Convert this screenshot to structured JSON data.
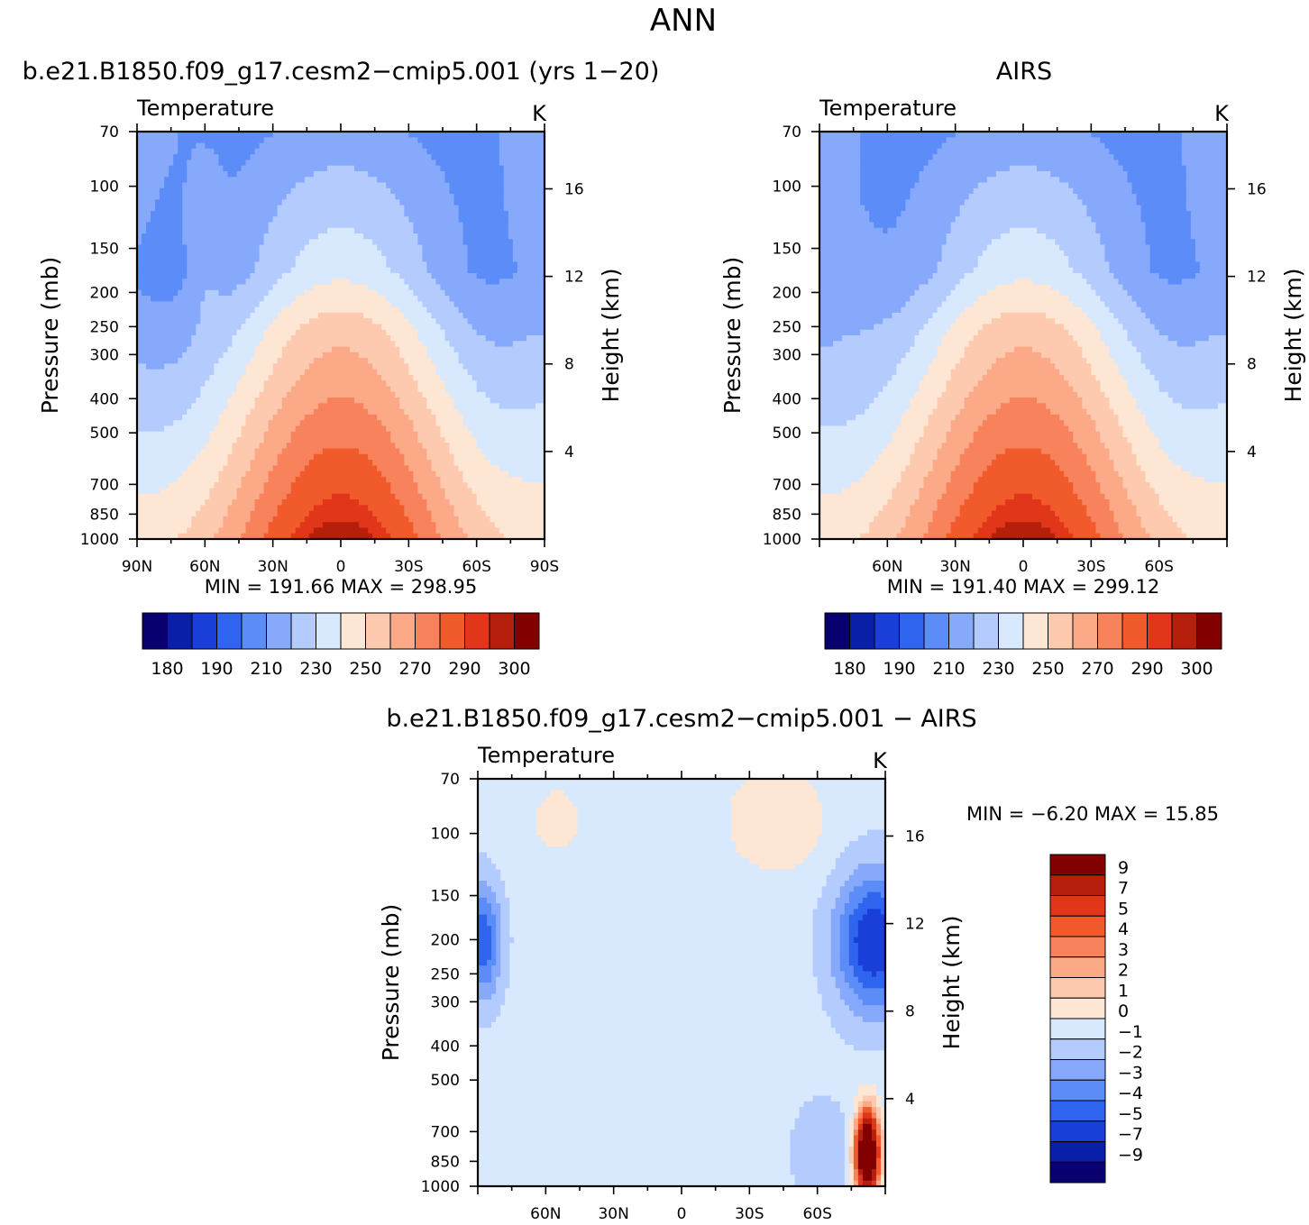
{
  "figure": {
    "title": "ANN",
    "colors": {
      "temp_levels": [
        "#08006e",
        "#0a1fa8",
        "#1a3fd9",
        "#2f64ee",
        "#5b8cf7",
        "#86a9fb",
        "#b4cbfd",
        "#d8e8fd",
        "#fde6d4",
        "#fdcab0",
        "#fba987",
        "#f7825c",
        "#f15a2a",
        "#e2361a",
        "#b51f0b",
        "#820000"
      ],
      "diff_levels": [
        "#08006e",
        "#0a1fa8",
        "#1a3fd9",
        "#2f64ee",
        "#5b8cf7",
        "#86a9fb",
        "#b4cbfd",
        "#d8e8fd",
        "#fde6d4",
        "#fdcab0",
        "#fba987",
        "#f7825c",
        "#f15a2a",
        "#e2361a",
        "#b51f0b",
        "#820000"
      ]
    }
  },
  "chart_data": [
    {
      "id": "model",
      "type": "heatmap",
      "title": "b.e21.B1850.f09_g17.cesm2−cmip5.001  (yrs  1−20)",
      "subtitle_left": "Temperature",
      "units": "K",
      "ylabel": "Pressure  (mb)",
      "y2label": "Height  (km)",
      "xlabel": "",
      "x_ticks": [
        90,
        60,
        30,
        0,
        -30,
        -60,
        -90
      ],
      "x_tick_labels": [
        "90N",
        "60N",
        "30N",
        "0",
        "30S",
        "60S",
        "90S"
      ],
      "y_ticks": [
        70,
        100,
        150,
        200,
        250,
        300,
        400,
        500,
        700,
        850,
        1000
      ],
      "y_tick_labels": [
        "70",
        "100",
        "150",
        "200",
        "250",
        "300",
        "400",
        "500",
        "700",
        "850",
        "1000"
      ],
      "height_ticks": [
        4,
        8,
        12,
        16
      ],
      "height_tick_labels": [
        "4",
        "8",
        "12",
        "16"
      ],
      "xlim": [
        90,
        -90
      ],
      "ylim": [
        1000,
        70
      ],
      "min_max": "MIN  =   191.66    MAX  =   298.95",
      "min": 191.66,
      "max": 298.95,
      "colorbar": {
        "levels": [
          175,
          180,
          185,
          190,
          200,
          210,
          220,
          230,
          240,
          250,
          260,
          270,
          280,
          290,
          295,
          300
        ],
        "labels": [
          "180",
          "190",
          "210",
          "230",
          "250",
          "270",
          "290",
          "300"
        ]
      }
    },
    {
      "id": "obs",
      "type": "heatmap",
      "title": "AIRS",
      "subtitle_left": "Temperature",
      "units": "K",
      "ylabel": "Pressure  (mb)",
      "y2label": "Height  (km)",
      "xlabel": "",
      "x_ticks": [
        60,
        30,
        0,
        -30,
        -60
      ],
      "x_tick_labels": [
        "60N",
        "30N",
        "0",
        "30S",
        "60S"
      ],
      "y_ticks": [
        70,
        100,
        150,
        200,
        250,
        300,
        400,
        500,
        700,
        850,
        1000
      ],
      "y_tick_labels": [
        "70",
        "100",
        "150",
        "200",
        "250",
        "300",
        "400",
        "500",
        "700",
        "850",
        "1000"
      ],
      "height_ticks": [
        4,
        8,
        12,
        16
      ],
      "height_tick_labels": [
        "4",
        "8",
        "12",
        "16"
      ],
      "xlim": [
        90,
        -90
      ],
      "ylim": [
        1000,
        70
      ],
      "min_max": "MIN  =   191.40    MAX  =   299.12",
      "min": 191.4,
      "max": 299.12,
      "colorbar": {
        "levels": [
          175,
          180,
          185,
          190,
          200,
          210,
          220,
          230,
          240,
          250,
          260,
          270,
          280,
          290,
          295,
          300
        ],
        "labels": [
          "180",
          "190",
          "210",
          "230",
          "250",
          "270",
          "290",
          "300"
        ]
      }
    },
    {
      "id": "diff",
      "type": "heatmap",
      "title": "b.e21.B1850.f09_g17.cesm2−cmip5.001  −  AIRS",
      "subtitle_left": "Temperature",
      "units": "K",
      "ylabel": "Pressure  (mb)",
      "y2label": "Height  (km)",
      "xlabel": "",
      "x_ticks": [
        60,
        30,
        0,
        -30,
        -60
      ],
      "x_tick_labels": [
        "60N",
        "30N",
        "0",
        "30S",
        "60S"
      ],
      "y_ticks": [
        70,
        100,
        150,
        200,
        250,
        300,
        400,
        500,
        700,
        850,
        1000
      ],
      "y_tick_labels": [
        "70",
        "100",
        "150",
        "200",
        "250",
        "300",
        "400",
        "500",
        "700",
        "850",
        "1000"
      ],
      "height_ticks": [
        4,
        8,
        12,
        16
      ],
      "height_tick_labels": [
        "4",
        "8",
        "12",
        "16"
      ],
      "xlim": [
        90,
        -90
      ],
      "ylim": [
        1000,
        70
      ],
      "min_max": "MIN  =    −6.20    MAX  =    15.85",
      "min": -6.2,
      "max": 15.85,
      "colorbar": {
        "levels": [
          -11,
          -9,
          -7,
          -5,
          -4,
          -3,
          -2,
          -1,
          0,
          1,
          2,
          3,
          4,
          5,
          7,
          9,
          11
        ],
        "labels": [
          "9",
          "7",
          "5",
          "4",
          "3",
          "2",
          "1",
          "0",
          "−1",
          "−2",
          "−3",
          "−4",
          "−5",
          "−7",
          "−9"
        ]
      }
    }
  ]
}
